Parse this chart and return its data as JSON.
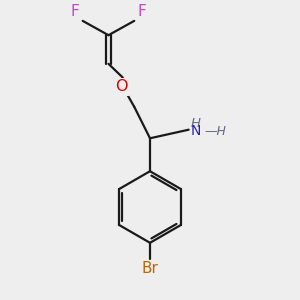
{
  "background_color": "#eeeeee",
  "bond_color": "#1a1a1a",
  "F_color": "#cc44cc",
  "O_color": "#dd0000",
  "N_color": "#2222bb",
  "Br_color": "#bb6600",
  "H_color": "#666688",
  "figsize": [
    3.0,
    3.0
  ],
  "dpi": 100,
  "xlim": [
    0,
    10
  ],
  "ylim": [
    0,
    10
  ]
}
